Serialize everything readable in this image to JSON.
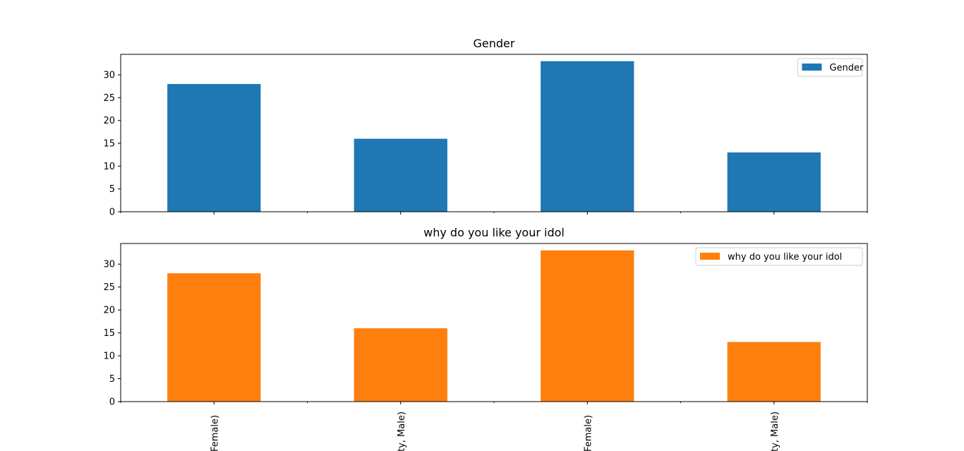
{
  "chart_data": [
    {
      "type": "bar",
      "title": "Gender",
      "categories": [
        "(Female)",
        "(Beauty, Male)",
        "(Female)",
        "(Beauty, Male)"
      ],
      "visible_tick_labels": [
        "Female)",
        "ty, Male)",
        "Female)",
        "ty, Male)"
      ],
      "series": [
        {
          "name": "Gender",
          "values": [
            28,
            16,
            33,
            13
          ],
          "color": "#1f77b4"
        }
      ],
      "ylim": [
        0,
        34.5
      ],
      "yticks": [
        0,
        5,
        10,
        15,
        20,
        25,
        30
      ],
      "legend": "top-right",
      "grid": false,
      "xlabel": "",
      "ylabel": ""
    },
    {
      "type": "bar",
      "title": "why do you like your idol",
      "categories": [
        "(Female)",
        "(Beauty, Male)",
        "(Female)",
        "(Beauty, Male)"
      ],
      "visible_tick_labels": [
        "Female)",
        "ty, Male)",
        "Female)",
        "ty, Male)"
      ],
      "series": [
        {
          "name": "why do you like your idol",
          "values": [
            28,
            16,
            33,
            13
          ],
          "color": "#ff7f0e"
        }
      ],
      "ylim": [
        0,
        34.5
      ],
      "yticks": [
        0,
        5,
        10,
        15,
        20,
        25,
        30
      ],
      "legend": "top-right",
      "grid": false,
      "xlabel": "",
      "ylabel": ""
    }
  ]
}
